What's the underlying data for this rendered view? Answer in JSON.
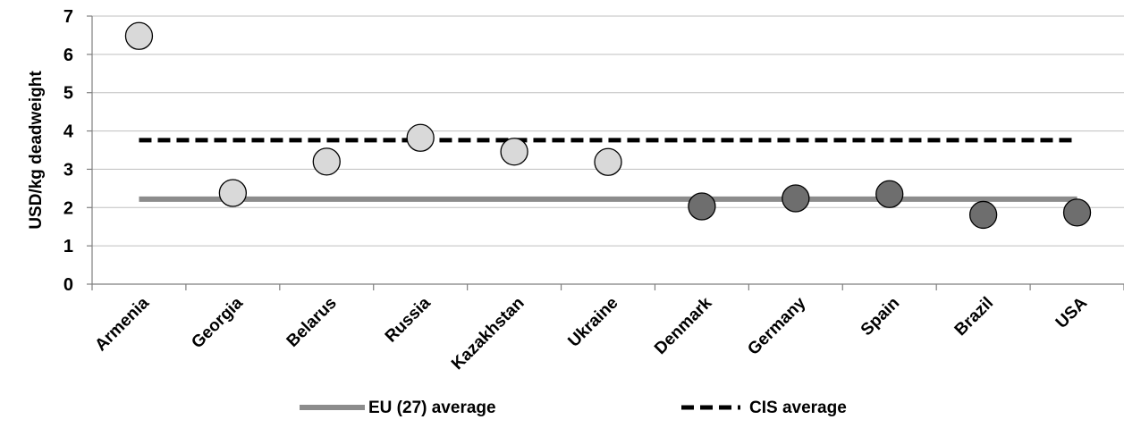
{
  "chart_data": {
    "type": "scatter",
    "title": "",
    "xlabel": "",
    "ylabel": "USD/kg deadweight",
    "ylim": [
      0,
      7
    ],
    "yticks": [
      0,
      1,
      2,
      3,
      4,
      5,
      6,
      7
    ],
    "grid": true,
    "legend_position": "bottom",
    "categories": [
      "Armenia",
      "Georgia",
      "Belarus",
      "Russia",
      "Kazakhstan",
      "Ukraine",
      "Denmark",
      "Germany",
      "Spain",
      "Brazil",
      "USA"
    ],
    "points": [
      {
        "category": "Armenia",
        "value": 6.48,
        "group": "CIS"
      },
      {
        "category": "Georgia",
        "value": 2.38,
        "group": "CIS"
      },
      {
        "category": "Belarus",
        "value": 3.2,
        "group": "CIS"
      },
      {
        "category": "Russia",
        "value": 3.82,
        "group": "CIS"
      },
      {
        "category": "Kazakhstan",
        "value": 3.46,
        "group": "CIS"
      },
      {
        "category": "Ukraine",
        "value": 3.19,
        "group": "CIS"
      },
      {
        "category": "Denmark",
        "value": 2.03,
        "group": "other"
      },
      {
        "category": "Germany",
        "value": 2.24,
        "group": "other"
      },
      {
        "category": "Spain",
        "value": 2.35,
        "group": "other"
      },
      {
        "category": "Brazil",
        "value": 1.81,
        "group": "other"
      },
      {
        "category": "USA",
        "value": 1.87,
        "group": "other"
      }
    ],
    "series": [
      {
        "name": "EU (27) average",
        "value": 2.22,
        "style": "solid",
        "color": "#8c8c8c"
      },
      {
        "name": "CIS average",
        "value": 3.76,
        "style": "dashed",
        "color": "#000000"
      }
    ],
    "colors": {
      "cis_marker": "#d9d9d9",
      "other_marker": "#6e6e6e",
      "marker_stroke": "#000000",
      "grid": "#bfbfbf"
    }
  }
}
